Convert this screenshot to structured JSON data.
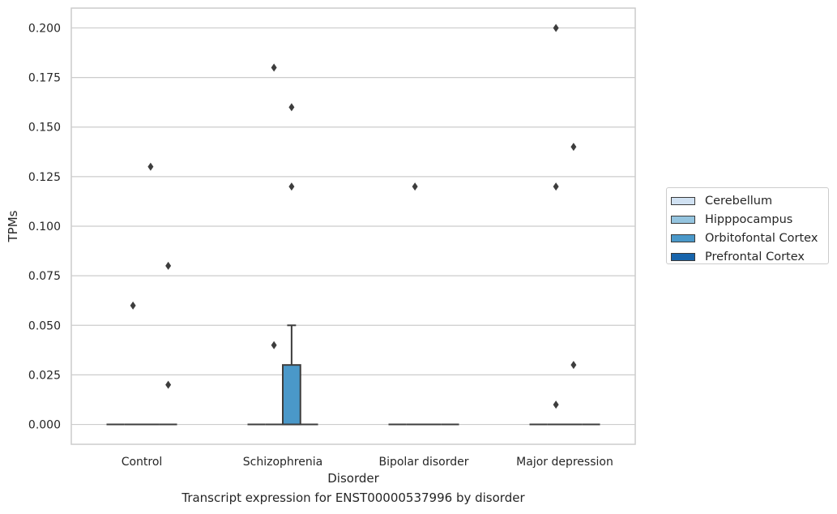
{
  "caption": "Transcript expression for ENST00000537996 by disorder",
  "chart_data": {
    "type": "box",
    "xlabel": "Disorder",
    "ylabel": "TPMs",
    "ylim": [
      -0.01,
      0.21
    ],
    "yticks": [
      0.0,
      0.025,
      0.05,
      0.075,
      0.1,
      0.125,
      0.15,
      0.175,
      0.2
    ],
    "ytick_labels": [
      "0.000",
      "0.025",
      "0.050",
      "0.075",
      "0.100",
      "0.125",
      "0.150",
      "0.175",
      "0.200"
    ],
    "grid": "horizontal",
    "legend_position": "right",
    "categories": [
      "Control",
      "Schizophrenia",
      "Bipolar disorder",
      "Major depression"
    ],
    "series": [
      {
        "name": "Cerebellum",
        "color": "#d0e1f2"
      },
      {
        "name": "Hipppocampus",
        "color": "#94c4df"
      },
      {
        "name": "Orbitofontal Cortex",
        "color": "#4a98c9"
      },
      {
        "name": "Prefrontal Cortex",
        "color": "#1764ab"
      }
    ],
    "boxes": [
      {
        "category": "Control",
        "series": "Cerebellum",
        "whisker_low": 0,
        "q1": 0,
        "median": 0,
        "q3": 0,
        "whisker_high": 0,
        "outliers": []
      },
      {
        "category": "Control",
        "series": "Hipppocampus",
        "whisker_low": 0,
        "q1": 0,
        "median": 0,
        "q3": 0,
        "whisker_high": 0,
        "outliers": [
          0.06
        ]
      },
      {
        "category": "Control",
        "series": "Orbitofontal Cortex",
        "whisker_low": 0,
        "q1": 0,
        "median": 0,
        "q3": 0,
        "whisker_high": 0,
        "outliers": [
          0.13
        ]
      },
      {
        "category": "Control",
        "series": "Prefrontal Cortex",
        "whisker_low": 0,
        "q1": 0,
        "median": 0,
        "q3": 0,
        "whisker_high": 0,
        "outliers": [
          0.02
        ]
      },
      {
        "category": "Control",
        "series": "Prefrontal Cortex",
        "whisker_low": 0,
        "q1": 0,
        "median": 0,
        "q3": 0,
        "whisker_high": 0,
        "outliers": [
          0.08
        ]
      },
      {
        "category": "Schizophrenia",
        "series": "Cerebellum",
        "whisker_low": 0,
        "q1": 0,
        "median": 0,
        "q3": 0,
        "whisker_high": 0,
        "outliers": []
      },
      {
        "category": "Schizophrenia",
        "series": "Hipppocampus",
        "whisker_low": 0,
        "q1": 0,
        "median": 0,
        "q3": 0,
        "whisker_high": 0,
        "outliers": [
          0.18,
          0.04
        ]
      },
      {
        "category": "Schizophrenia",
        "series": "Orbitofontal Cortex",
        "whisker_low": 0,
        "q1": 0,
        "median": 0,
        "q3": 0.03,
        "whisker_high": 0.05,
        "outliers": [
          0.16,
          0.12
        ]
      },
      {
        "category": "Schizophrenia",
        "series": "Prefrontal Cortex",
        "whisker_low": 0,
        "q1": 0,
        "median": 0,
        "q3": 0,
        "whisker_high": 0,
        "outliers": []
      },
      {
        "category": "Bipolar disorder",
        "series": "Cerebellum",
        "whisker_low": 0,
        "q1": 0,
        "median": 0,
        "q3": 0,
        "whisker_high": 0,
        "outliers": []
      },
      {
        "category": "Bipolar disorder",
        "series": "Hipppocampus",
        "whisker_low": 0,
        "q1": 0,
        "median": 0,
        "q3": 0,
        "whisker_high": 0,
        "outliers": [
          0.12
        ]
      },
      {
        "category": "Bipolar disorder",
        "series": "Orbitofontal Cortex",
        "whisker_low": 0,
        "q1": 0,
        "median": 0,
        "q3": 0,
        "whisker_high": 0,
        "outliers": []
      },
      {
        "category": "Bipolar disorder",
        "series": "Prefrontal Cortex",
        "whisker_low": 0,
        "q1": 0,
        "median": 0,
        "q3": 0,
        "whisker_high": 0,
        "outliers": []
      },
      {
        "category": "Major depression",
        "series": "Cerebellum",
        "whisker_low": 0,
        "q1": 0,
        "median": 0,
        "q3": 0,
        "whisker_high": 0,
        "outliers": []
      },
      {
        "category": "Major depression",
        "series": "Hipppocampus",
        "whisker_low": 0,
        "q1": 0,
        "median": 0,
        "q3": 0,
        "whisker_high": 0,
        "outliers": [
          0.2,
          0.12,
          0.01
        ]
      },
      {
        "category": "Major depression",
        "series": "Orbitofontal Cortex",
        "whisker_low": 0,
        "q1": 0,
        "median": 0,
        "q3": 0,
        "whisker_high": 0,
        "outliers": [
          0.14,
          0.03
        ]
      },
      {
        "category": "Major depression",
        "series": "Prefrontal Cortex",
        "whisker_low": 0,
        "q1": 0,
        "median": 0,
        "q3": 0,
        "whisker_high": 0,
        "outliers": []
      }
    ]
  }
}
